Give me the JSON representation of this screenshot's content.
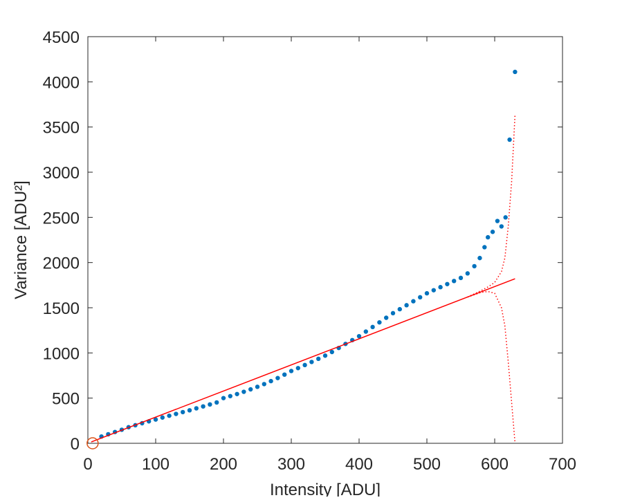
{
  "chart_data": {
    "type": "scatter",
    "xlabel": "Intensity [ADU]",
    "ylabel": "Variance [ADU²]",
    "xlim": [
      0,
      700
    ],
    "xticks": [
      0,
      100,
      200,
      300,
      400,
      500,
      600,
      700
    ],
    "ylim": [
      0,
      4500
    ],
    "yticks": [
      0,
      500,
      1000,
      1500,
      2000,
      2500,
      3000,
      3500,
      4000,
      4500
    ],
    "series": [
      {
        "style": "dots",
        "color": "#0072bd",
        "x": [
          20,
          30,
          40,
          50,
          60,
          70,
          80,
          90,
          100,
          110,
          120,
          130,
          140,
          150,
          160,
          170,
          180,
          190,
          200,
          210,
          220,
          230,
          240,
          250,
          260,
          270,
          280,
          290,
          300,
          310,
          320,
          330,
          340,
          350,
          360,
          370,
          380,
          390,
          400,
          410,
          420,
          430,
          440,
          450,
          460,
          470,
          480,
          490,
          500,
          510,
          520,
          530,
          540,
          550,
          560,
          570,
          578,
          585,
          590,
          597,
          604,
          610,
          616,
          622,
          630
        ],
        "values": [
          75,
          100,
          125,
          150,
          178,
          200,
          222,
          243,
          263,
          285,
          305,
          325,
          345,
          365,
          387,
          408,
          430,
          452,
          500,
          522,
          545,
          570,
          597,
          625,
          655,
          688,
          722,
          760,
          800,
          832,
          866,
          900,
          935,
          970,
          1010,
          1055,
          1100,
          1142,
          1185,
          1236,
          1287,
          1338,
          1389,
          1440,
          1484,
          1528,
          1572,
          1616,
          1660,
          1694,
          1728,
          1762,
          1796,
          1830,
          1880,
          1960,
          2050,
          2170,
          2280,
          2340,
          2460,
          2400,
          2500,
          3360,
          4110
        ]
      },
      {
        "style": "line",
        "color": "#ff0000",
        "x": [
          5,
          630
        ],
        "values": [
          15,
          1821
        ]
      },
      {
        "style": "dotted",
        "color": "#ff0000",
        "x": [
          560,
          580,
          590,
          600,
          610,
          615,
          620,
          625,
          630
        ],
        "values": [
          1618,
          1690,
          1730,
          1780,
          1900,
          2050,
          2400,
          2900,
          3640
        ]
      },
      {
        "style": "dotted",
        "color": "#ff0000",
        "x": [
          560,
          580,
          590,
          600,
          610,
          615,
          620,
          625,
          630
        ],
        "values": [
          1618,
          1670,
          1680,
          1660,
          1500,
          1300,
          900,
          450,
          0
        ]
      },
      {
        "style": "circle",
        "color": "#d95319",
        "x": [
          7
        ],
        "values": [
          0
        ]
      }
    ]
  }
}
